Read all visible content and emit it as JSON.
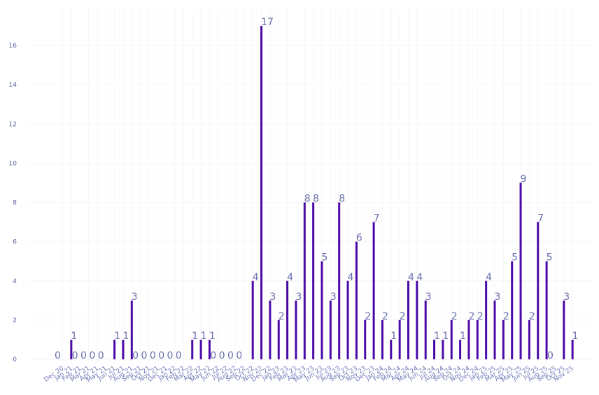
{
  "chart_data": {
    "type": "bar",
    "title": "",
    "xlabel": "",
    "ylabel": "",
    "ylim": [
      0,
      17.5
    ],
    "yticks": [
      0,
      2,
      4,
      6,
      8,
      10,
      12,
      14,
      16
    ],
    "grid": true,
    "legend": "none",
    "bar_color": "#4b0aa8",
    "categories": [
      "Dec 20",
      "Jan 21",
      "Feb 21",
      "Mar 21",
      "Apr 21",
      "May 21",
      "Jun 21",
      "Jul 21",
      "Aug 21",
      "Sep 21",
      "Oct 21",
      "Nov 21",
      "Dec 21",
      "Jan 22",
      "Feb 22",
      "Mar 22",
      "Apr 22",
      "May 22",
      "Jun 22",
      "Jul 22",
      "Aug 22",
      "Sep 22",
      "Oct 22",
      "Nov 22",
      "Dec 22",
      "Jan 23",
      "Feb 23",
      "Mar 23",
      "Apr 23",
      "May 23",
      "Jun 23",
      "Jul 23",
      "Aug 23",
      "Sep 23",
      "Oct 23",
      "Nov 23",
      "Dec 23",
      "Jan 24",
      "Feb 24",
      "Mar 24",
      "Apr 24",
      "May 24",
      "Jun 24",
      "Jul 24",
      "Aug 24",
      "Sep 24",
      "Oct 24",
      "Nov 24",
      "Dec 24",
      "Jan 25",
      "Feb 25",
      "Mar 25",
      "Apr 25",
      "May 25",
      "Jun 25",
      "Jul 25",
      "Aug 25",
      "Sep 25",
      "Oct 25",
      "Nov 25"
    ],
    "values": [
      0,
      1,
      0,
      0,
      0,
      0,
      1,
      1,
      3,
      0,
      0,
      0,
      0,
      0,
      0,
      1,
      1,
      1,
      0,
      0,
      0,
      0,
      4,
      17,
      3,
      2,
      4,
      3,
      8,
      8,
      5,
      3,
      8,
      4,
      6,
      2,
      7,
      2,
      1,
      2,
      4,
      4,
      3,
      1,
      1,
      2,
      1,
      2,
      2,
      4,
      3,
      2,
      5,
      9,
      2,
      7,
      5,
      0,
      3,
      1
    ]
  }
}
